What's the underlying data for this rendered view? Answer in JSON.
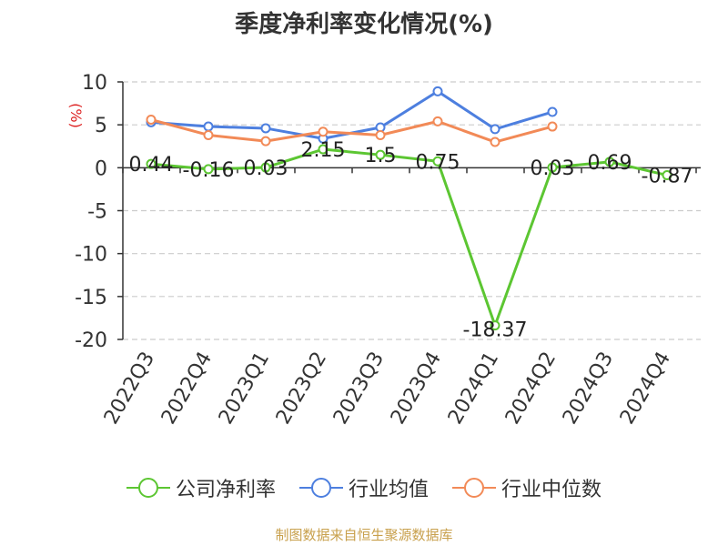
{
  "chart_data": {
    "type": "line",
    "title": "季度净利率变化情况(%)",
    "ylabel": "(%)",
    "ylim": [
      -20,
      10
    ],
    "yticks": [
      10,
      5,
      0,
      -5,
      -10,
      -15,
      -20
    ],
    "grid": true,
    "legend_position": "bottom",
    "categories": [
      "2022Q3",
      "2022Q4",
      "2023Q1",
      "2023Q2",
      "2023Q3",
      "2023Q4",
      "2024Q1",
      "2024Q2",
      "2024Q3",
      "2024Q4"
    ],
    "series": [
      {
        "name": "公司净利率",
        "color": "#5cc632",
        "values": [
          0.44,
          -0.16,
          0.03,
          2.15,
          1.5,
          0.75,
          -18.37,
          0.03,
          0.69,
          -0.87
        ],
        "data_labels": [
          "0.44",
          "-0.16",
          "0.03",
          "2.15",
          "1.5",
          "0.75",
          "-18.37",
          "0.03",
          "0.69",
          "-0.87"
        ]
      },
      {
        "name": "行业均值",
        "color": "#4d7fdf",
        "values": [
          5.3,
          4.8,
          4.6,
          3.4,
          4.7,
          8.9,
          4.5,
          6.5,
          null,
          null
        ]
      },
      {
        "name": "行业中位数",
        "color": "#f28a57",
        "values": [
          5.6,
          3.8,
          3.1,
          4.2,
          3.8,
          5.4,
          3.0,
          4.8,
          null,
          null
        ]
      }
    ]
  },
  "source": "制图数据来自恒生聚源数据库"
}
